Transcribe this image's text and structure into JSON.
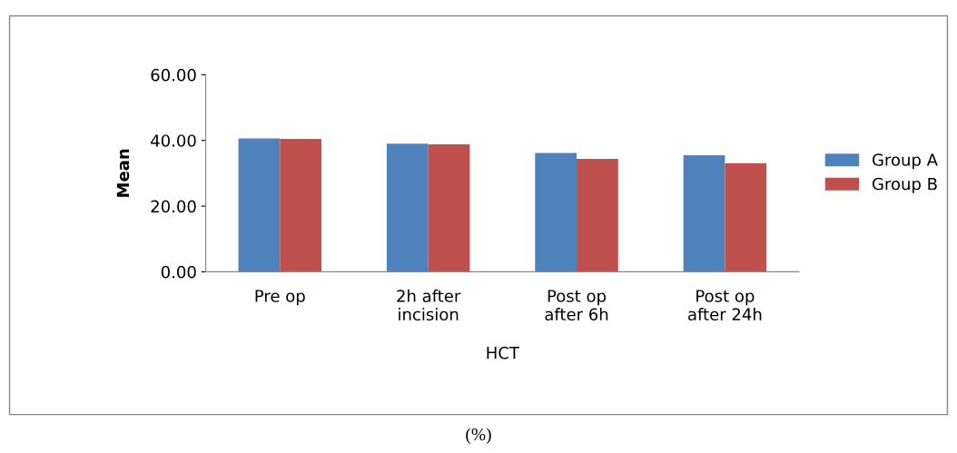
{
  "chart_data": {
    "type": "bar",
    "xlabel": "HCT",
    "ylabel": "Mean",
    "categories": [
      "Pre op",
      "2h after\nincision",
      "Post op\nafter 6h",
      "Post op\nafter 24h"
    ],
    "series": [
      {
        "name": "Group A",
        "color": "#4f81bd",
        "values": [
          40.6,
          39.0,
          36.2,
          35.5
        ]
      },
      {
        "name": "Group B",
        "color": "#c0504d",
        "values": [
          40.5,
          38.8,
          34.4,
          33.1
        ]
      }
    ],
    "ylim": [
      0,
      60
    ],
    "yticks": [
      {
        "value": 0,
        "label": "0.00"
      },
      {
        "value": 20,
        "label": "20.00"
      },
      {
        "value": 40,
        "label": "40.00"
      },
      {
        "value": 60,
        "label": "60.00"
      }
    ],
    "grid": false,
    "legend": "right",
    "annotations": [
      "(%)"
    ]
  }
}
